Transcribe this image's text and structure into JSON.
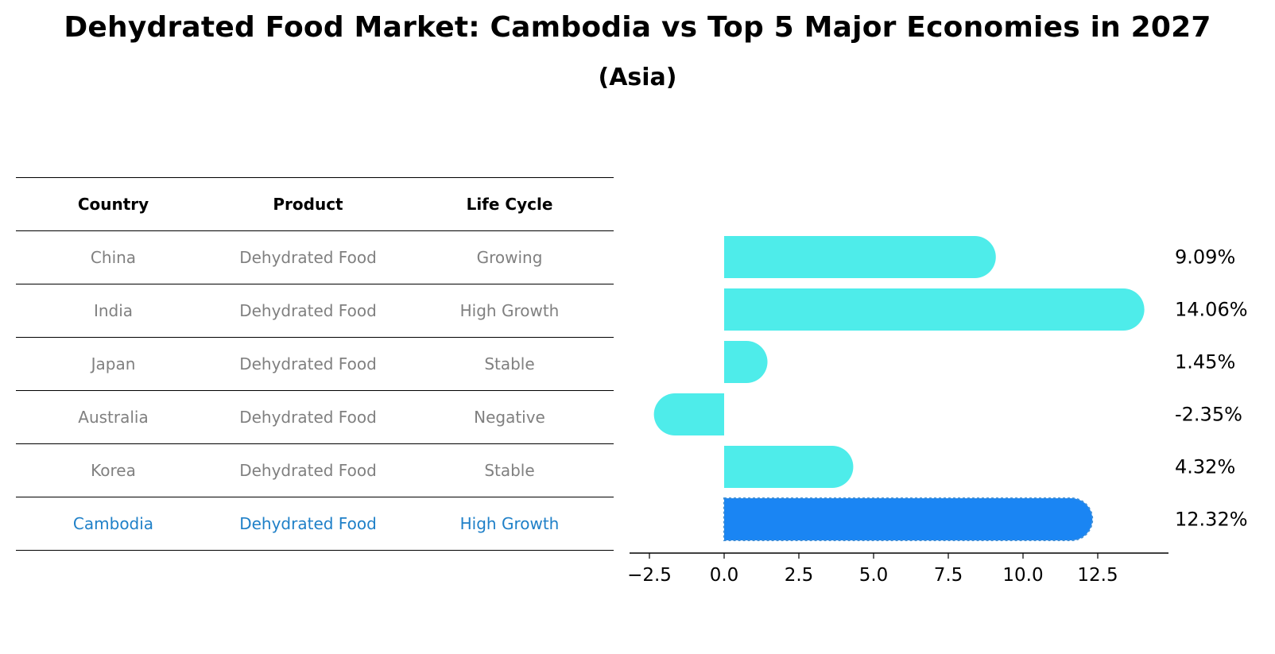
{
  "title": "Dehydrated Food Market: Cambodia vs Top 5 Major Economies in 2027",
  "subtitle": "(Asia)",
  "table": {
    "headers": [
      "Country",
      "Product",
      "Life Cycle"
    ],
    "rows": [
      {
        "country": "China",
        "product": "Dehydrated Food",
        "life_cycle": "Growing"
      },
      {
        "country": "India",
        "product": "Dehydrated Food",
        "life_cycle": "High Growth"
      },
      {
        "country": "Japan",
        "product": "Dehydrated Food",
        "life_cycle": "Stable"
      },
      {
        "country": "Australia",
        "product": "Dehydrated Food",
        "life_cycle": "Negative"
      },
      {
        "country": "Korea",
        "product": "Dehydrated Food",
        "life_cycle": "Stable"
      },
      {
        "country": "Cambodia",
        "product": "Dehydrated Food",
        "life_cycle": "High Growth"
      }
    ],
    "highlight_row_color": "#1f80c8",
    "normal_row_color": "#808080"
  },
  "chart_data": {
    "type": "bar",
    "orientation": "horizontal",
    "categories": [
      "China",
      "India",
      "Japan",
      "Australia",
      "Korea",
      "Cambodia"
    ],
    "values": [
      9.09,
      14.06,
      1.45,
      -2.35,
      4.32,
      12.32
    ],
    "value_labels": [
      "9.09%",
      "14.06%",
      "1.45%",
      "-2.35%",
      "4.32%",
      "12.32%"
    ],
    "bar_colors": [
      "#4eecea",
      "#4eecea",
      "#4eecea",
      "#4eecea",
      "#4eecea",
      "#1a85f3"
    ],
    "highlight_category": "Cambodia",
    "xlim": [
      -3.2,
      14.9
    ],
    "xticks": [
      -2.5,
      0.0,
      2.5,
      5.0,
      7.5,
      10.0,
      12.5
    ],
    "xtick_labels": [
      "−2.5",
      "0.0",
      "2.5",
      "5.0",
      "7.5",
      "10.0",
      "12.5"
    ],
    "grid": false
  }
}
